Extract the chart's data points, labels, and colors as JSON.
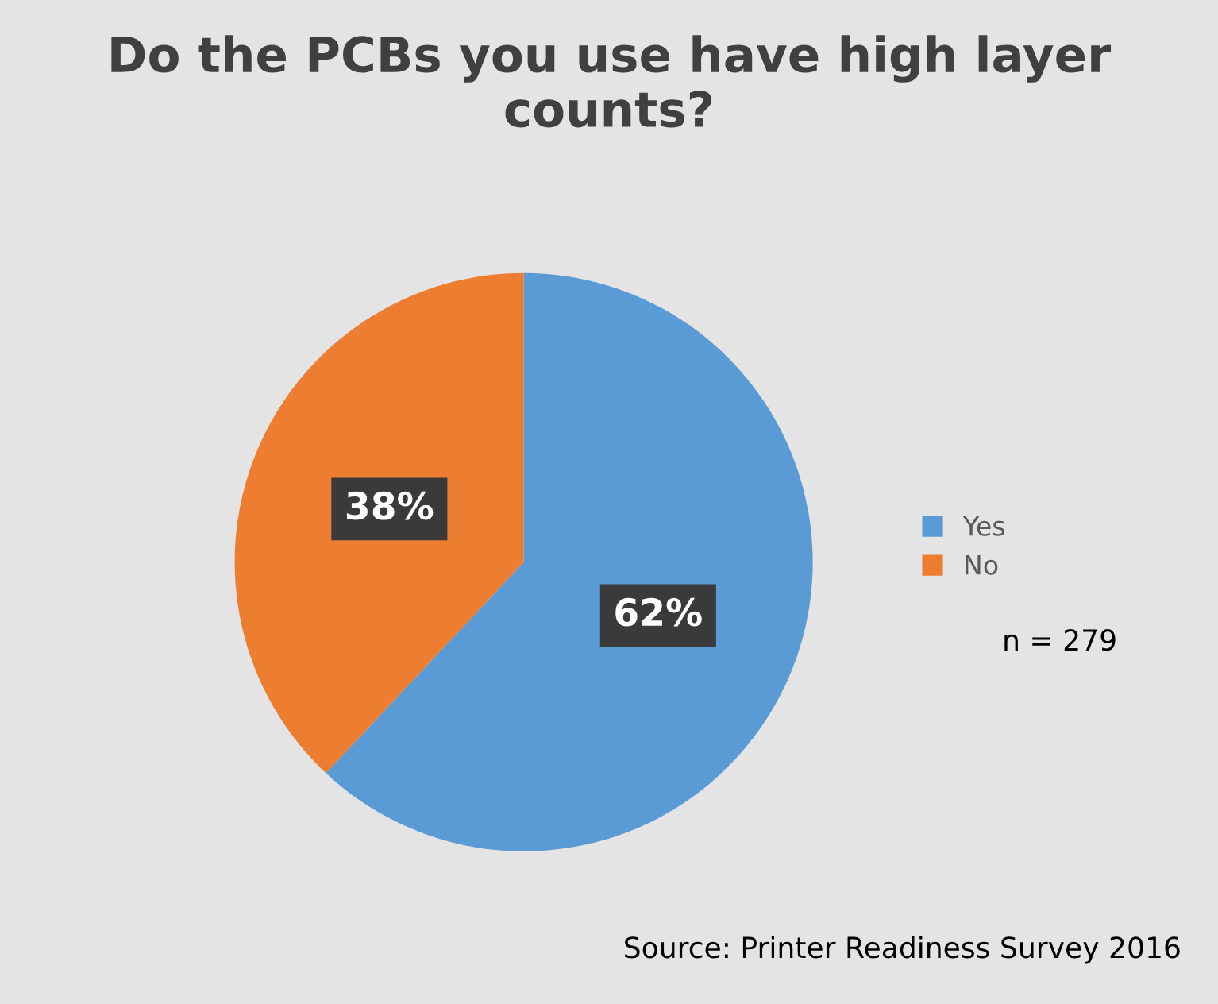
{
  "chart_data": {
    "type": "pie",
    "title": "Do the PCBs you use have high layer counts?",
    "categories": [
      "Yes",
      "No"
    ],
    "values": [
      62,
      38
    ],
    "colors": [
      "#5b9bd5",
      "#ed7d31"
    ],
    "value_labels": [
      "62%",
      "38%"
    ],
    "legend": "right",
    "annotations": [
      "n = 279",
      "Source: Printer Readiness Survey 2016"
    ]
  }
}
